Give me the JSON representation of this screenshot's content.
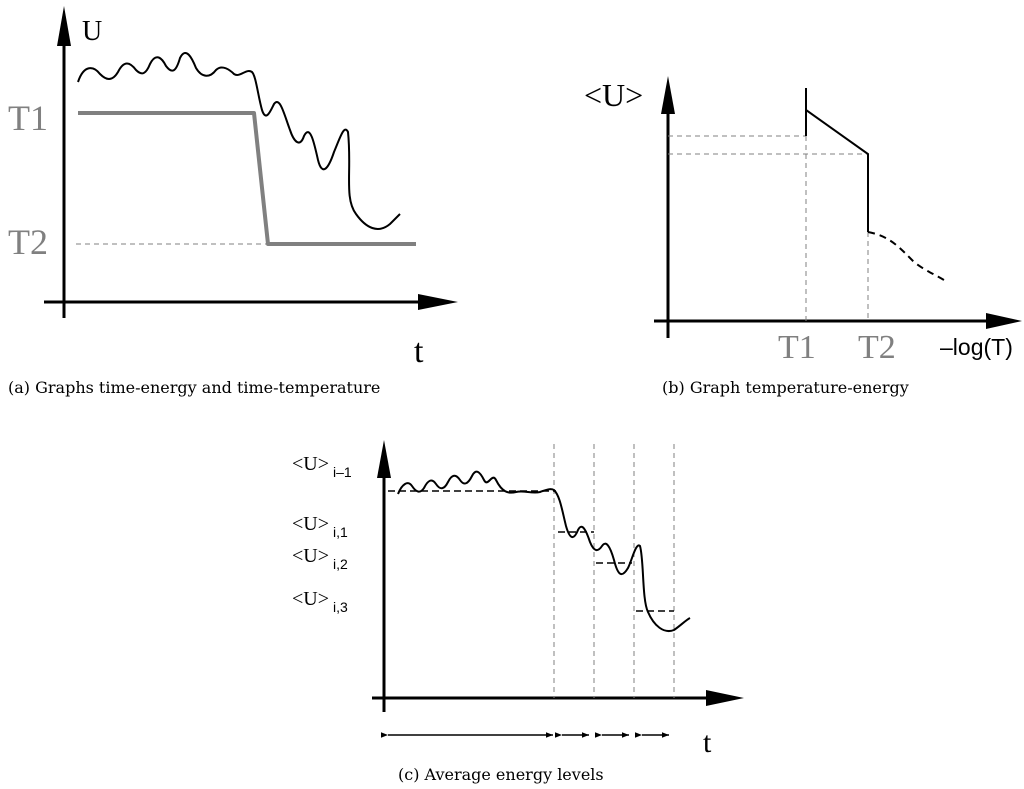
{
  "panel_a": {
    "y_axis_label": "U",
    "x_axis_label": "t",
    "level_high": "T1",
    "level_low": "T2",
    "caption": "(a)  Graphs time-energy and time-temperature"
  },
  "panel_b": {
    "y_axis_label": "<U>",
    "x_axis_label": "–log(T)",
    "tick_1": "T1",
    "tick_2": "T2",
    "caption": "(b)  Graph temperature-energy"
  },
  "panel_c": {
    "x_axis_label": "t",
    "levels": [
      {
        "main": "<U>",
        "sub": "i–1"
      },
      {
        "main": "<U>",
        "sub": "i,1"
      },
      {
        "main": "<U>",
        "sub": "i,2"
      },
      {
        "main": "<U>",
        "sub": "i,3"
      }
    ],
    "caption": "(c)  Average energy levels"
  },
  "colors": {
    "ink": "#000000",
    "temperature_line": "#808080",
    "temperature_label": "#808080",
    "guide": "#808080"
  }
}
